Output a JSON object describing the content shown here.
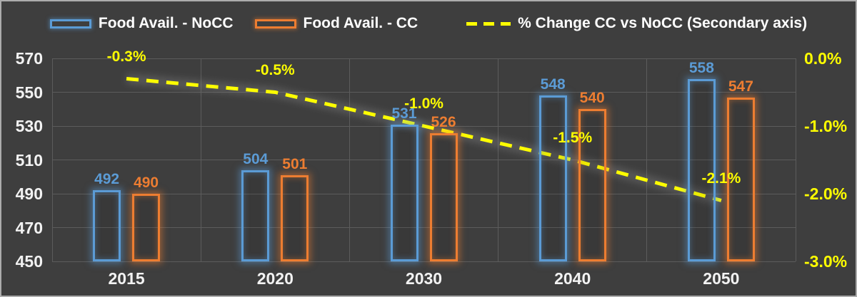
{
  "legend": [
    {
      "label": "Food Avail. - NoCC",
      "color": "#5B9BD5",
      "marker": "rect"
    },
    {
      "label": "Food Avail. - CC",
      "color": "#ED7D31",
      "marker": "rect"
    },
    {
      "label": "% Change CC vs NoCC (Secondary axis)",
      "color": "#FFFF00",
      "marker": "dash"
    }
  ],
  "palette": {
    "background": "#3E3E3E",
    "frame_border": "#ACACAC",
    "grid": "#5C5C5C",
    "axis_text": "#F2F2F2",
    "secondary_axis_text": "#FFFF00",
    "line_glow": "#909090"
  },
  "chart_data": {
    "type": "bar",
    "subtype": "combo-bar-line",
    "title": "",
    "categories": [
      "2015",
      "2020",
      "2030",
      "2040",
      "2050"
    ],
    "series": [
      {
        "name": "Food Avail. - NoCC",
        "type": "bar",
        "axis": "primary",
        "color": "#5B9BD5",
        "values": [
          492,
          504,
          531,
          548,
          558
        ]
      },
      {
        "name": "Food Avail. - CC",
        "type": "bar",
        "axis": "primary",
        "color": "#ED7D31",
        "values": [
          490,
          501,
          526,
          540,
          547
        ]
      },
      {
        "name": "% Change CC vs NoCC (Secondary axis)",
        "type": "line",
        "axis": "secondary",
        "color": "#FFFF00",
        "dashed": true,
        "values": [
          -0.3,
          -0.5,
          -1.0,
          -1.5,
          -2.1
        ],
        "labels": [
          "-0.3%",
          "-0.5%",
          "-1.0%",
          "-1.5%",
          "-2.1%"
        ]
      }
    ],
    "left_axis": {
      "min": 450,
      "max": 570,
      "ticks": [
        570,
        550,
        530,
        510,
        490,
        470,
        450
      ]
    },
    "right_axis": {
      "min": -3,
      "max": 0,
      "ticks": [
        "0.0%",
        "-1.0%",
        "-2.0%",
        "-3.0%"
      ]
    },
    "grid": true,
    "legend_position": "top"
  }
}
